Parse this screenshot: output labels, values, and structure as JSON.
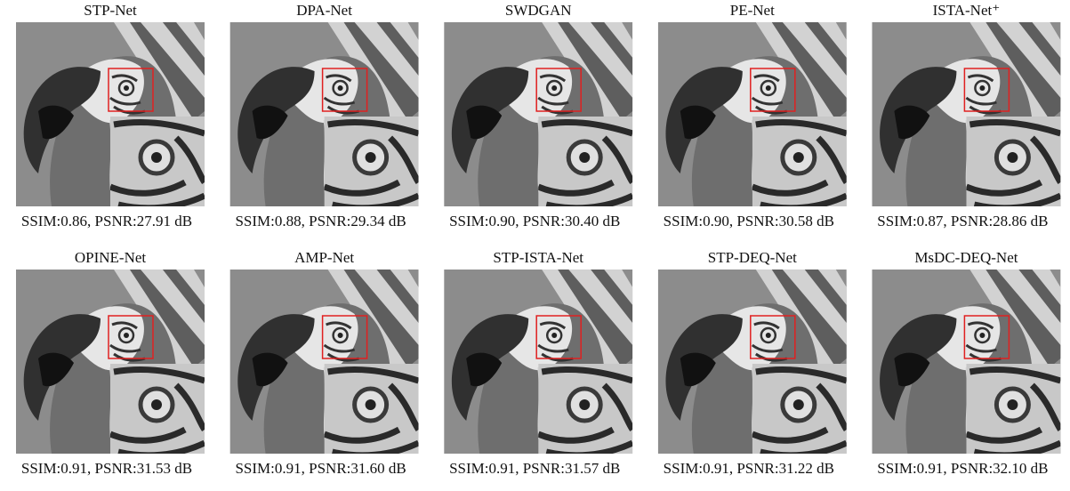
{
  "panels": [
    {
      "title": "STP-Net",
      "caption": "SSIM:0.86, PSNR:27.91 dB"
    },
    {
      "title": "DPA-Net",
      "caption": "SSIM:0.88, PSNR:29.34 dB"
    },
    {
      "title": "SWDGAN",
      "caption": "SSIM:0.90, PSNR:30.40 dB"
    },
    {
      "title": "PE-Net",
      "caption": "SSIM:0.90, PSNR:30.58 dB"
    },
    {
      "title": "ISTA-Net⁺",
      "caption": "SSIM:0.87, PSNR:28.86 dB"
    },
    {
      "title": "OPINE-Net",
      "caption": "SSIM:0.91, PSNR:31.53 dB"
    },
    {
      "title": "AMP-Net",
      "caption": "SSIM:0.91, PSNR:31.60 dB"
    },
    {
      "title": "STP-ISTA-Net",
      "caption": "SSIM:0.91, PSNR:31.57 dB"
    },
    {
      "title": "STP-DEQ-Net",
      "caption": "SSIM:0.91, PSNR:31.22 dB"
    },
    {
      "title": "MsDC-DEQ-Net",
      "caption": "SSIM:0.91, PSNR:32.10 dB"
    }
  ]
}
